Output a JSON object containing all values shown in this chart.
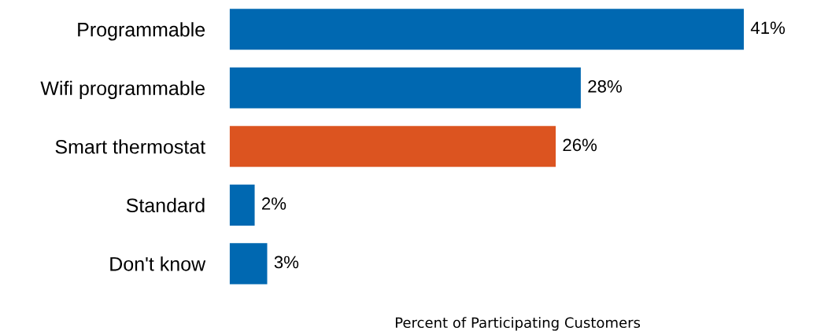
{
  "chart_data": {
    "type": "bar",
    "orientation": "horizontal",
    "categories": [
      "Programmable",
      "Wifi programmable",
      "Smart thermostat",
      "Standard",
      "Don't know"
    ],
    "values": [
      41,
      28,
      26,
      2,
      3
    ],
    "colors": [
      "#0068b1",
      "#0068b1",
      "#dc5420",
      "#0068b1",
      "#0068b1"
    ],
    "value_labels": [
      "41%",
      "28%",
      "26%",
      "2%",
      "3%"
    ],
    "xlabel": "Percent of Participating Customers",
    "grid": false,
    "tick_labels": "y"
  }
}
